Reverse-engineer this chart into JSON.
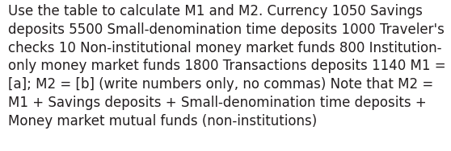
{
  "text_lines": [
    "Use the table to calculate M1 and M2. Currency 1050 Savings",
    "deposits 5500 Small-denomination time deposits 1000 Traveler's",
    "checks 10 Non-institutional money market funds 800 Institution-",
    "only money market funds 1800 Transactions deposits 1140 M1 =",
    "[a]; M2 = [b] (write numbers only, no commas) Note that M2 =",
    "M1 + Savings deposits + Small-denomination time deposits +",
    "Money market mutual funds (non-institutions)"
  ],
  "background_color": "#ffffff",
  "text_color": "#231f20",
  "font_size": 12.0,
  "figwidth": 5.58,
  "figheight": 1.88,
  "dpi": 100
}
